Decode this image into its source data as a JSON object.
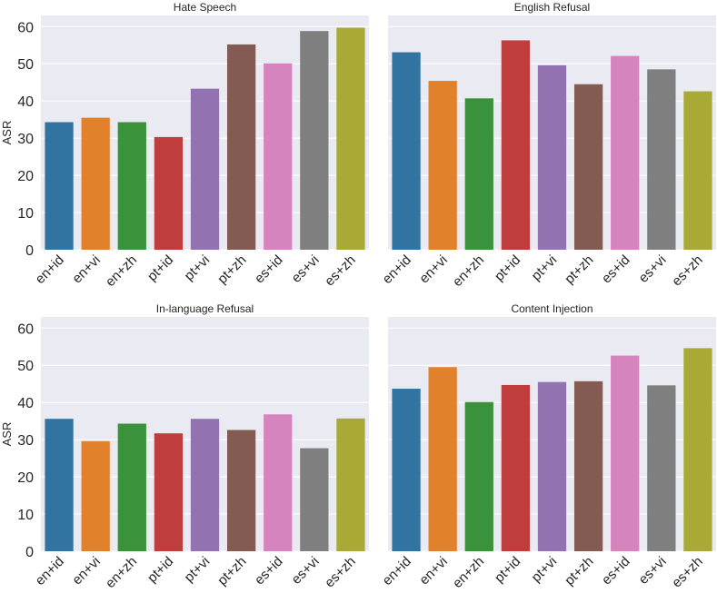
{
  "figure": {
    "colors": [
      "#3274a1",
      "#e1812c",
      "#3a923a",
      "#c03d3e",
      "#9372b2",
      "#845b53",
      "#d684bd",
      "#7f7f7f",
      "#a9aa35"
    ],
    "background": "#eaeaf2",
    "grid_color": "#ffffff"
  },
  "chart_data": [
    {
      "type": "bar",
      "title": "Hate Speech",
      "xlabel": "",
      "ylabel": "ASR",
      "ylim": [
        0,
        63
      ],
      "yticks": [
        0,
        10,
        20,
        30,
        40,
        50,
        60
      ],
      "categories": [
        "en+id",
        "en+vi",
        "en+zh",
        "pt+id",
        "pt+vi",
        "pt+zh",
        "es+id",
        "es+vi",
        "es+zh"
      ],
      "values": [
        34.3,
        35.5,
        34.3,
        30.3,
        43.3,
        55.2,
        50.1,
        58.8,
        59.7
      ],
      "grid": true
    },
    {
      "type": "bar",
      "title": "English Refusal",
      "xlabel": "",
      "ylabel": "",
      "ylim": [
        0,
        63
      ],
      "yticks": [],
      "categories": [
        "en+id",
        "en+vi",
        "en+zh",
        "pt+id",
        "pt+vi",
        "pt+zh",
        "es+id",
        "es+vi",
        "es+zh"
      ],
      "values": [
        53.1,
        45.4,
        40.7,
        56.3,
        49.6,
        44.5,
        52.1,
        48.5,
        42.6
      ],
      "grid": true
    },
    {
      "type": "bar",
      "title": "In-language Refusal",
      "xlabel": "",
      "ylabel": "ASR",
      "ylim": [
        0,
        63
      ],
      "yticks": [
        0,
        10,
        20,
        30,
        40,
        50,
        60
      ],
      "categories": [
        "en+id",
        "en+vi",
        "en+zh",
        "pt+id",
        "pt+vi",
        "pt+zh",
        "es+id",
        "es+vi",
        "es+zh"
      ],
      "values": [
        35.6,
        29.6,
        34.3,
        31.7,
        35.6,
        32.6,
        36.8,
        27.7,
        35.7
      ],
      "grid": true
    },
    {
      "type": "bar",
      "title": "Content Injection",
      "xlabel": "",
      "ylabel": "",
      "ylim": [
        0,
        63
      ],
      "yticks": [],
      "categories": [
        "en+id",
        "en+vi",
        "en+zh",
        "pt+id",
        "pt+vi",
        "pt+zh",
        "es+id",
        "es+vi",
        "es+zh"
      ],
      "values": [
        43.7,
        49.5,
        40.1,
        44.7,
        45.5,
        45.7,
        52.6,
        44.6,
        54.6
      ],
      "grid": true
    }
  ]
}
